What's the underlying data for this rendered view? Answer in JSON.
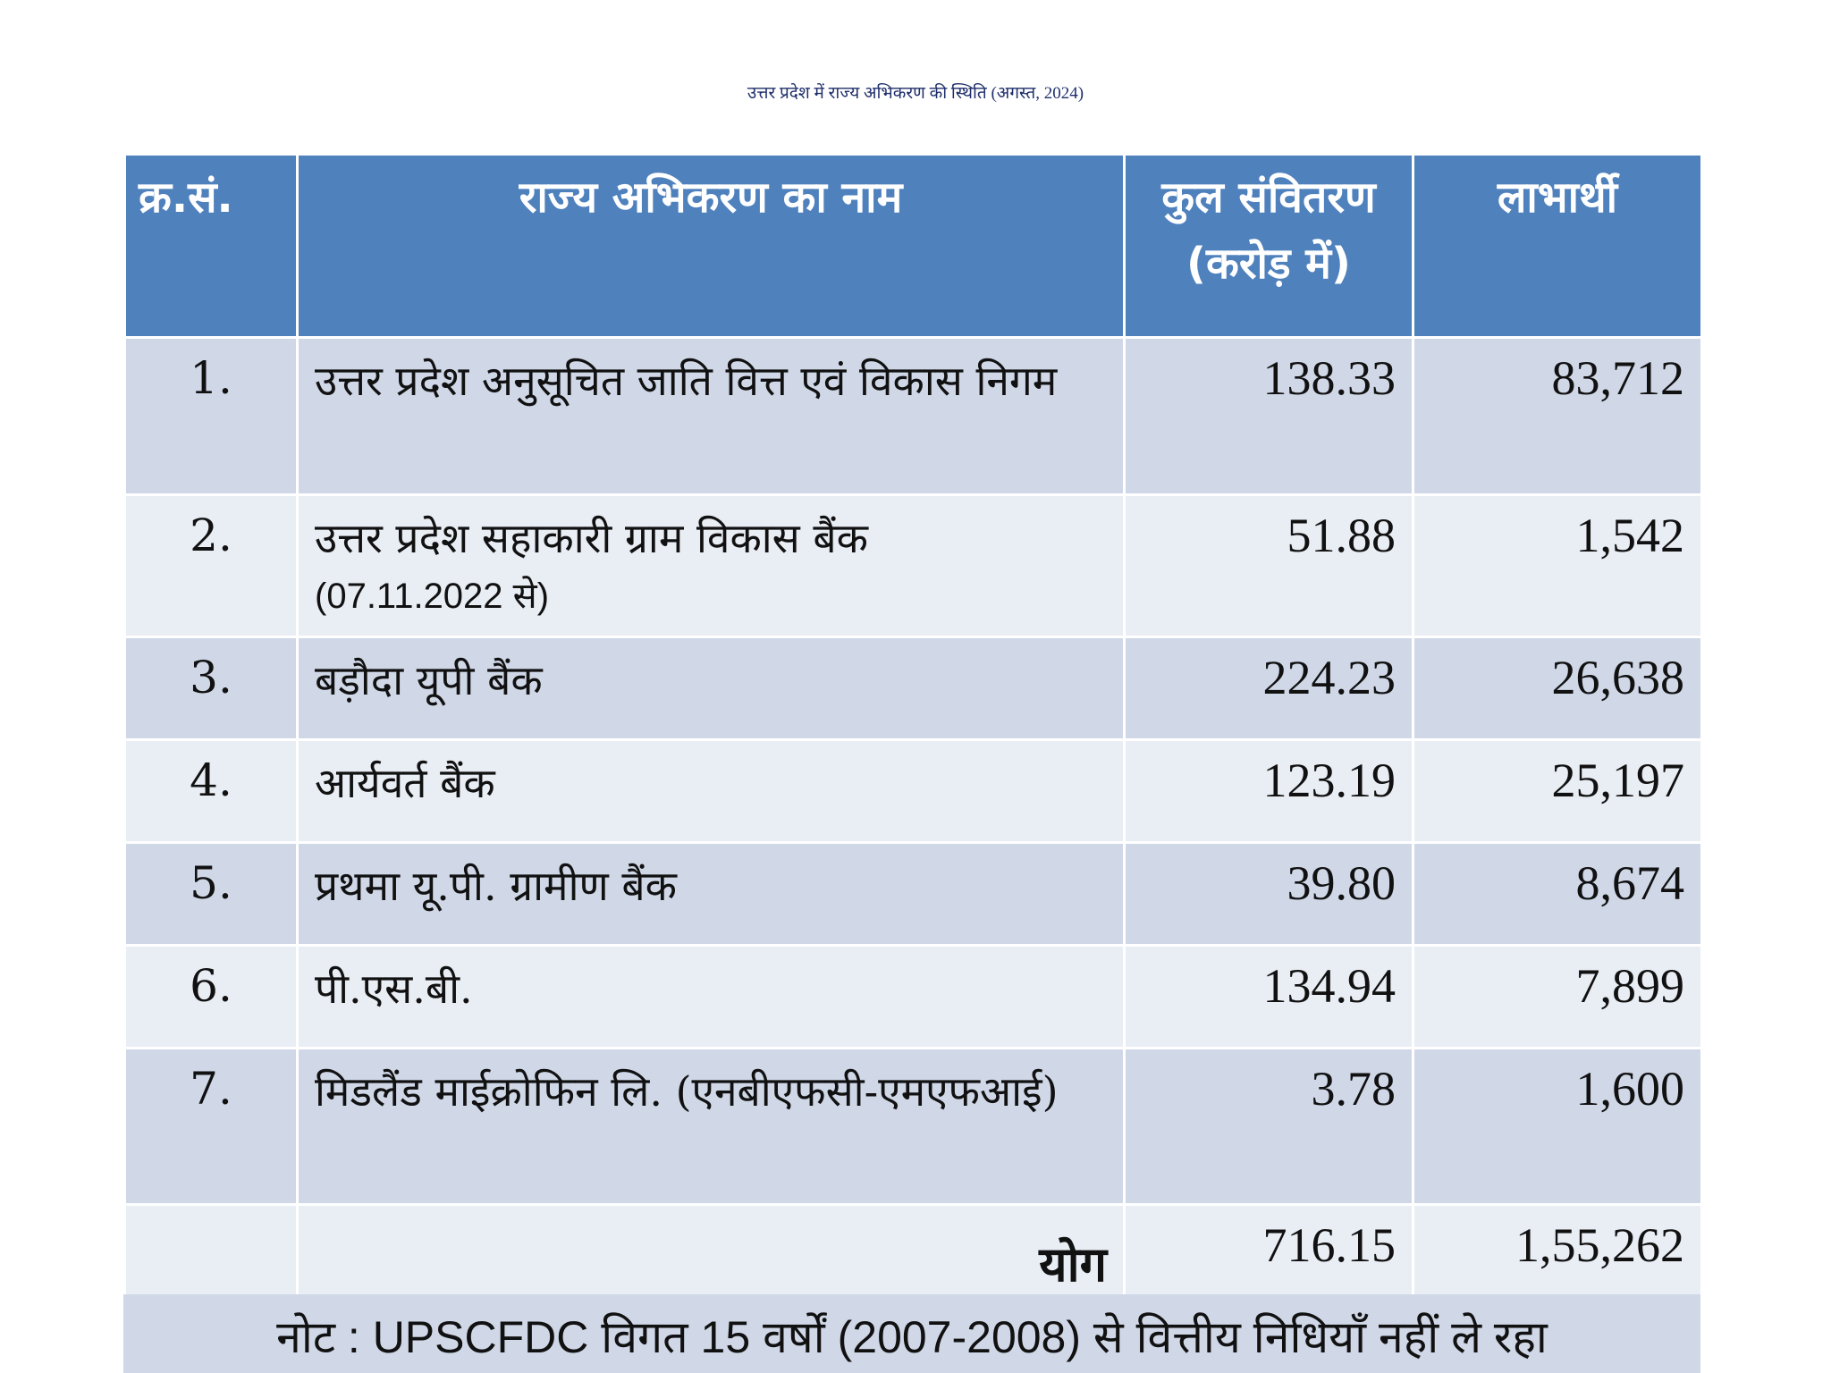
{
  "title": "उत्तर प्रदेश में राज्य अभिकरण की स्थिति (अगस्त, 2024)",
  "table": {
    "headers": {
      "sn": "क्र.सं.",
      "name": "राज्य अभिकरण का नाम",
      "amount_line1": "कुल संवितरण",
      "amount_line2": "(करोड़ में)",
      "beneficiaries": "लाभार्थी"
    },
    "rows": [
      {
        "sn": "1.",
        "name": "उत्तर प्रदेश  अनुसूचित जाति वित्त एवं विकास निगम",
        "sub": "",
        "amount": "138.33",
        "beneficiaries": "83,712"
      },
      {
        "sn": "2.",
        "name": "उत्तर प्रदेश सहाकारी ग्राम विकास बैंक",
        "sub": "(07.11.2022 से)",
        "amount": "51.88",
        "beneficiaries": "1,542"
      },
      {
        "sn": "3.",
        "name": "बड़ौदा यूपी बैंक",
        "sub": "",
        "amount": "224.23",
        "beneficiaries": "26,638"
      },
      {
        "sn": "4.",
        "name": "आर्यवर्त बैंक",
        "sub": "",
        "amount": "123.19",
        "beneficiaries": "25,197"
      },
      {
        "sn": "5.",
        "name": "प्रथमा यू.पी. ग्रामीण बैंक",
        "sub": "",
        "amount": "39.80",
        "beneficiaries": "8,674"
      },
      {
        "sn": "6.",
        "name": "पी.एस.बी.",
        "sub": "",
        "amount": "134.94",
        "beneficiaries": "7,899"
      },
      {
        "sn": "7.",
        "name": "मिडलैंड माईक्रोफिन लि. (एनबीएफसी-एमएफआई)",
        "sub": "",
        "amount": "3.78",
        "beneficiaries": "1,600"
      }
    ],
    "total": {
      "label": "योग",
      "amount": "716.15",
      "beneficiaries": "1,55,262"
    }
  },
  "note": "नोट : UPSCFDC विगत 15 वर्षों (2007-2008) से वित्तीय निधियाँ नहीं ले रहा",
  "colors": {
    "header_bg": "#4f81bd",
    "band_bg": "#d0d8e8",
    "plain_bg": "#e9edf4",
    "title_color": "#1f2f6b"
  }
}
